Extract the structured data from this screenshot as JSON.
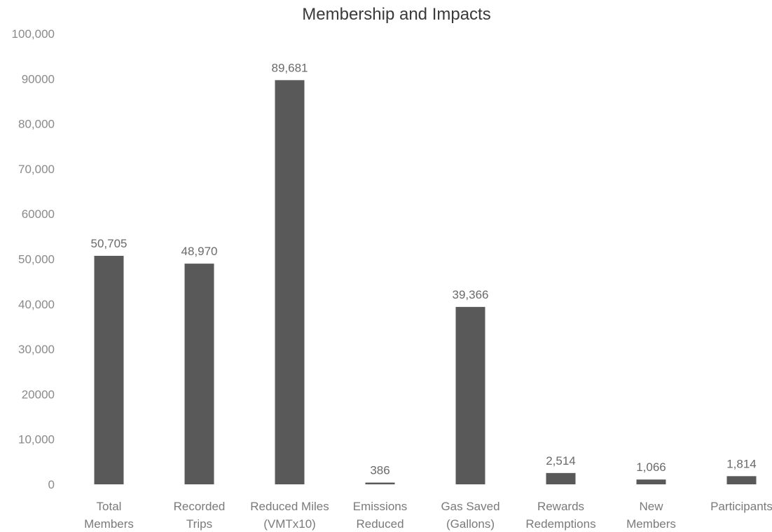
{
  "colors": {
    "bar": "#595959",
    "text": "#7a7a7a",
    "title": "#3a3a3a"
  },
  "chart_data": {
    "type": "bar",
    "title": "Membership and Impacts",
    "xlabel": "",
    "ylabel": "",
    "ylim": [
      0,
      100000
    ],
    "yticks": [
      "0",
      "10,000",
      "20000",
      "30,000",
      "40,000",
      "50,000",
      "60000",
      "70,000",
      "80,000",
      "90000",
      "100,000"
    ],
    "grid": false,
    "legend": "none",
    "categories": [
      [
        "Total",
        "Members"
      ],
      [
        "Recorded",
        "Trips"
      ],
      [
        "Reduced Miles",
        "(VMTx10)"
      ],
      [
        "Emissions",
        "Reduced"
      ],
      [
        "Gas Saved",
        "(Gallons)"
      ],
      [
        "Rewards",
        "Redemptions"
      ],
      [
        "New",
        "Members"
      ],
      [
        "Participants"
      ]
    ],
    "values": [
      50705,
      48970,
      89681,
      386,
      39366,
      2514,
      1066,
      1814
    ],
    "data_labels": [
      "50,705",
      "48,970",
      "89,681",
      "386",
      "39,366",
      "2,514",
      "1,066",
      "1,814"
    ]
  }
}
